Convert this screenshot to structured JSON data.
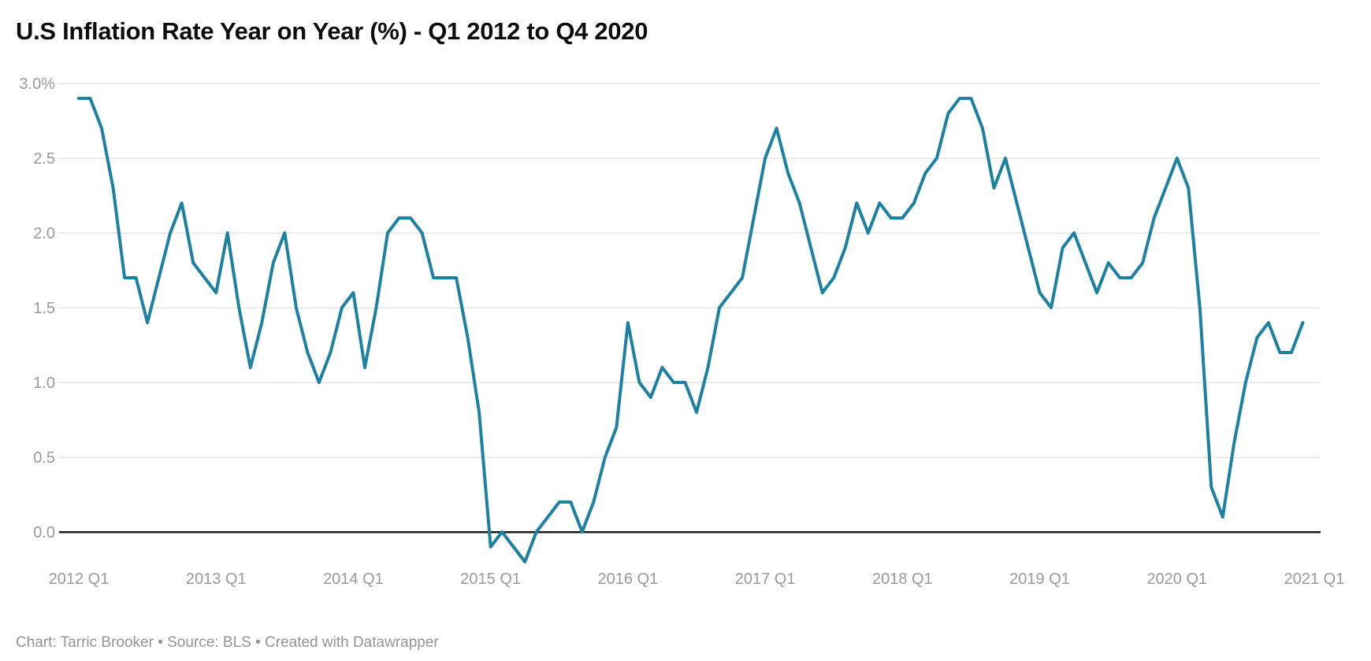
{
  "header": {
    "title": "U.S Inflation Rate Year on Year (%) - Q1 2012 to Q4 2020"
  },
  "footer": {
    "text": "Chart: Tarric Brooker • Source: BLS • Created with Datawrapper"
  },
  "chart_data": {
    "type": "line",
    "title": "U.S Inflation Rate Year on Year (%) - Q1 2012 to Q4 2020",
    "x_unit": "month",
    "x_start": "2012-01",
    "x_end": "2020-12",
    "x_tick_labels": [
      "2012 Q1",
      "2013 Q1",
      "2014 Q1",
      "2015 Q1",
      "2016 Q1",
      "2017 Q1",
      "2018 Q1",
      "2019 Q1",
      "2020 Q1",
      "2021 Q1"
    ],
    "y_ticks": [
      {
        "label": "3.0%",
        "value": 3.0
      },
      {
        "label": "2.5",
        "value": 2.5
      },
      {
        "label": "2.0",
        "value": 2.0
      },
      {
        "label": "1.5",
        "value": 1.5
      },
      {
        "label": "1.0",
        "value": 1.0
      },
      {
        "label": "0.5",
        "value": 0.5
      },
      {
        "label": "0.0",
        "value": 0.0
      }
    ],
    "ylim": [
      -0.35,
      3.1
    ],
    "grid": "horizontal",
    "legend": "none",
    "baseline": 0,
    "series": [
      {
        "name": "U.S inflation rate YoY (%)",
        "values": [
          2.9,
          2.9,
          2.7,
          2.3,
          1.7,
          1.7,
          1.4,
          1.7,
          2.0,
          2.2,
          1.8,
          1.7,
          1.6,
          2.0,
          1.5,
          1.1,
          1.4,
          1.8,
          2.0,
          1.5,
          1.2,
          1.0,
          1.2,
          1.5,
          1.6,
          1.1,
          1.5,
          2.0,
          2.1,
          2.1,
          2.0,
          1.7,
          1.7,
          1.7,
          1.3,
          0.8,
          -0.1,
          0.0,
          -0.1,
          -0.2,
          0.0,
          0.1,
          0.2,
          0.2,
          0.0,
          0.2,
          0.5,
          0.7,
          1.4,
          1.0,
          0.9,
          1.1,
          1.0,
          1.0,
          0.8,
          1.1,
          1.5,
          1.6,
          1.7,
          2.1,
          2.5,
          2.7,
          2.4,
          2.2,
          1.9,
          1.6,
          1.7,
          1.9,
          2.2,
          2.0,
          2.2,
          2.1,
          2.1,
          2.2,
          2.4,
          2.5,
          2.8,
          2.9,
          2.9,
          2.7,
          2.3,
          2.5,
          2.2,
          1.9,
          1.6,
          1.5,
          1.9,
          2.0,
          1.8,
          1.6,
          1.8,
          1.7,
          1.7,
          1.8,
          2.1,
          2.3,
          2.5,
          2.3,
          1.5,
          0.3,
          0.1,
          0.6,
          1.0,
          1.3,
          1.4,
          1.2,
          1.2,
          1.4
        ]
      }
    ],
    "colors": {
      "line": "#1d81a2",
      "grid": "#e5e5e5",
      "zero_line": "#1a1a1a",
      "axis_text": "#9a9a9a",
      "title_text": "#0e0e0e",
      "footer_text": "#949494",
      "background": "#ffffff"
    }
  }
}
